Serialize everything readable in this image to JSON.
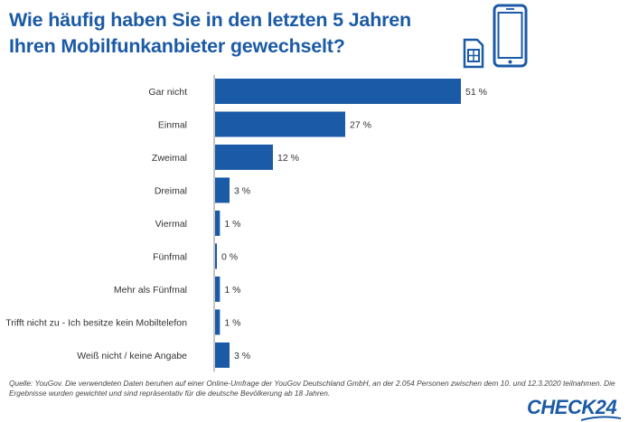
{
  "title": {
    "line1": "Wie häufig haben Sie in den letzten 5 Jahren",
    "line2": "Ihren Mobilfunkanbieter gewechselt?"
  },
  "icons": [
    "sim-card-icon",
    "smartphone-icon"
  ],
  "colors": {
    "bar": "#1b5aa6",
    "title": "#1b5aa6",
    "axis": "#888888"
  },
  "chart_data": {
    "type": "bar",
    "orientation": "horizontal",
    "categories": [
      "Gar nicht",
      "Einmal",
      "Zweimal",
      "Dreimal",
      "Viermal",
      "Fünfmal",
      "Mehr als Fünfmal",
      "Trifft nicht zu - Ich besitze kein Mobiltelefon",
      "Weiß nicht / keine Angabe"
    ],
    "values": [
      51,
      27,
      12,
      3,
      1,
      0,
      1,
      1,
      3
    ],
    "value_labels": [
      "51 %",
      "27 %",
      "12 %",
      "3 %",
      "1 %",
      "0 %",
      "1 %",
      "1 %",
      "3 %"
    ],
    "unit": "%",
    "xlim": [
      0,
      51
    ],
    "grid": false,
    "legend": "none"
  },
  "source": "Quelle: YouGov. Die verwendeten Daten beruhen auf einer Online-Umfrage der YouGov Deutschland GmbH, an der 2.054 Personen zwischen dem 10. und 12.3.2020 teilnahmen. Die Ergebnisse wurden gewichtet und sind repräsentativ für die deutsche Bevölkerung ab 18 Jahren.",
  "logo_text": "CHECK24"
}
